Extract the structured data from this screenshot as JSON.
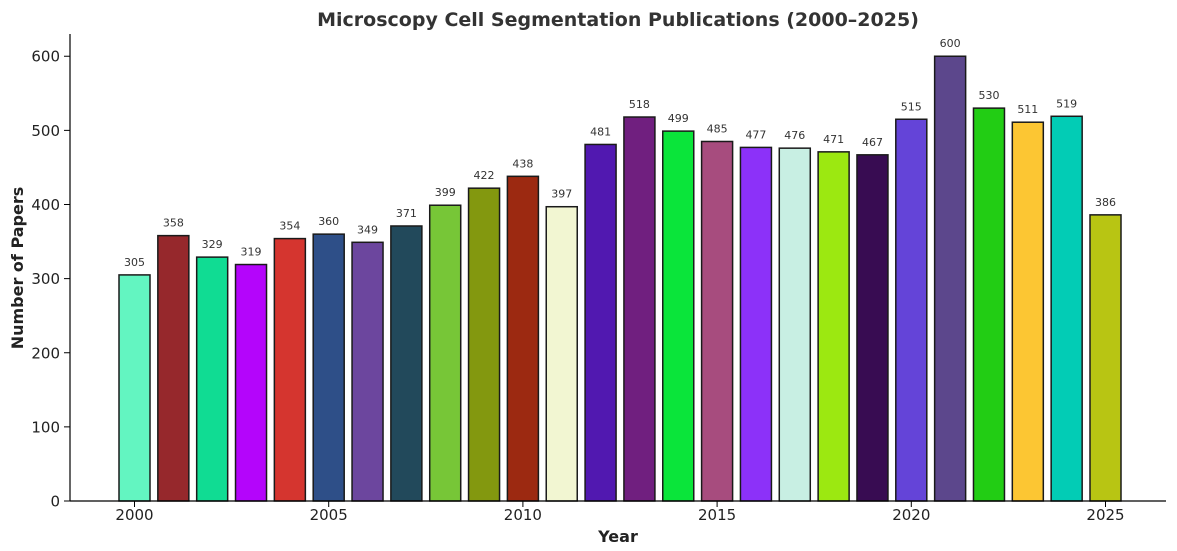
{
  "chart_data": {
    "type": "bar",
    "title": "Microscopy Cell Segmentation Publications (2000–2025)",
    "xlabel": "Year",
    "ylabel": "Number of Papers",
    "categories": [
      2000,
      2001,
      2002,
      2003,
      2004,
      2005,
      2006,
      2007,
      2008,
      2009,
      2010,
      2011,
      2012,
      2013,
      2014,
      2015,
      2016,
      2017,
      2018,
      2019,
      2020,
      2021,
      2022,
      2023,
      2024,
      2025
    ],
    "values": [
      305,
      358,
      329,
      319,
      354,
      360,
      349,
      371,
      399,
      422,
      438,
      397,
      481,
      518,
      499,
      485,
      477,
      476,
      471,
      467,
      515,
      600,
      530,
      511,
      519,
      386
    ],
    "colors": [
      "#63f5c1",
      "#96282c",
      "#10dc93",
      "#b405fb",
      "#d5352f",
      "#2e4f88",
      "#6c469e",
      "#22495b",
      "#77c637",
      "#83980f",
      "#9c2911",
      "#f2f6d2",
      "#5118b0",
      "#701f7f",
      "#0ae53a",
      "#a74c7e",
      "#8c31f9",
      "#c8efe3",
      "#9ce811",
      "#380c52",
      "#6444d8",
      "#5c478c",
      "#22cd14",
      "#fcc633",
      "#02ccb5",
      "#b8c513"
    ],
    "xticks": [
      "2000",
      "2005",
      "2010",
      "2015",
      "2020",
      "2025"
    ],
    "yticks": [
      "0",
      "100",
      "200",
      "300",
      "400",
      "500",
      "600"
    ],
    "ylim": [
      0,
      630
    ],
    "grid": false,
    "legend": "none"
  }
}
